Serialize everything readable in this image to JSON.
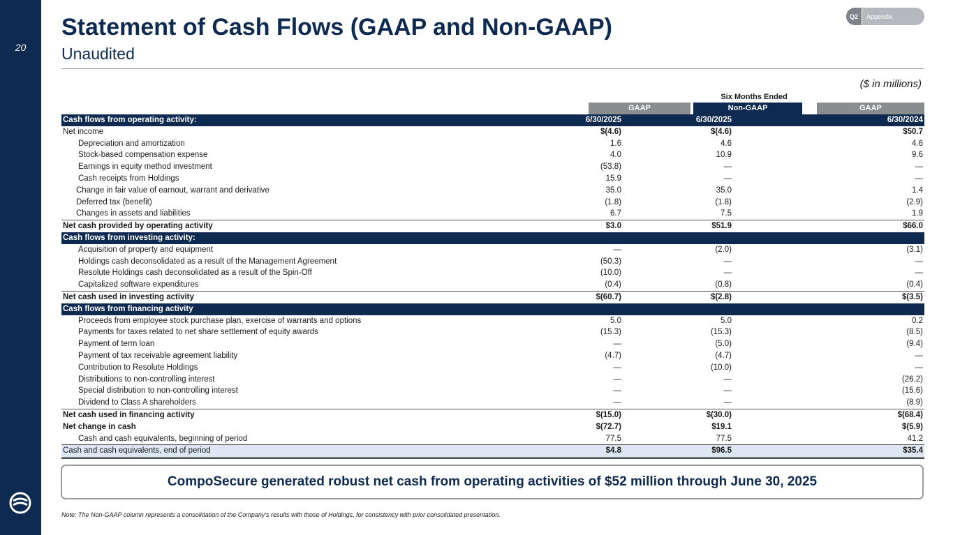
{
  "page_number": "20",
  "title": "Statement of Cash Flows (GAAP and Non-GAAP)",
  "subtitle": "Unaudited",
  "pill": {
    "quarter": "Q2",
    "section": "Appendix"
  },
  "units": "($ in millions)",
  "period_header": "Six Months Ended",
  "columns": [
    {
      "type": "GAAP",
      "date": "6/30/2025"
    },
    {
      "type": "Non-GAAP",
      "date": "6/30/2025"
    },
    {
      "type": "GAAP",
      "date": "6/30/2024"
    }
  ],
  "rows": [
    {
      "label": "Cash flows from operating activity:",
      "style": "section",
      "values": [
        "6/30/2025",
        "6/30/2025",
        "6/30/2024"
      ]
    },
    {
      "label": "Net income",
      "style": "plain",
      "values": [
        "$(4.6)",
        "$(4.6)",
        "$50.7"
      ],
      "bold_values": true
    },
    {
      "label": "Depreciation and amortization",
      "style": "ind",
      "values": [
        "1.6",
        "4.6",
        "4.6"
      ]
    },
    {
      "label": "Stock-based compensation expense",
      "style": "ind",
      "values": [
        "4.0",
        "10.9",
        "9.6"
      ]
    },
    {
      "label": "Earnings in equity method investment",
      "style": "ind",
      "values": [
        "(53.8)",
        "—",
        "—"
      ]
    },
    {
      "label": "Cash receipts from Holdings",
      "style": "ind",
      "values": [
        "15.9",
        "—",
        "—"
      ]
    },
    {
      "label": "Change in fair value of earnout, warrant and derivative",
      "style": "ind2",
      "values": [
        "35.0",
        "35.0",
        "1.4"
      ]
    },
    {
      "label": "Deferred tax (benefit)",
      "style": "ind2",
      "values": [
        "(1.8)",
        "(1.8)",
        "(2.9)"
      ]
    },
    {
      "label": "Changes in assets and liabilities",
      "style": "ind2",
      "values": [
        "6.7",
        "7.5",
        "1.9"
      ]
    },
    {
      "label": "Net cash provided by operating activity",
      "style": "total",
      "values": [
        "$3.0",
        "$51.9",
        "$66.0"
      ]
    },
    {
      "label": "Cash flows from investing activity:",
      "style": "section",
      "values": [
        "",
        "",
        ""
      ]
    },
    {
      "label": "Acquisition of property and equipment",
      "style": "ind",
      "values": [
        "—",
        "(2.0)",
        "(3.1)"
      ]
    },
    {
      "label": "Holdings cash deconsolidated as a result of the Management Agreement",
      "style": "ind",
      "values": [
        "(50.3)",
        "—",
        "—"
      ]
    },
    {
      "label": "Resolute Holdings cash deconsolidated as a result of the Spin-Off",
      "style": "ind",
      "values": [
        "(10.0)",
        "—",
        "—"
      ]
    },
    {
      "label": "Capitalized software expenditures",
      "style": "ind",
      "values": [
        "(0.4)",
        "(0.8)",
        "(0.4)"
      ]
    },
    {
      "label": "Net cash used in investing activity",
      "style": "total",
      "values": [
        "$(60.7)",
        "$(2.8)",
        "$(3.5)"
      ]
    },
    {
      "label": "Cash flows from financing activity",
      "style": "section",
      "values": [
        "",
        "",
        ""
      ]
    },
    {
      "label": "Proceeds from employee stock purchase plan, exercise of warrants and options",
      "style": "ind",
      "values": [
        "5.0",
        "5.0",
        "0.2"
      ]
    },
    {
      "label": "Payments for taxes related to net share settlement of equity awards",
      "style": "ind",
      "values": [
        "(15.3)",
        "(15.3)",
        "(8.5)"
      ]
    },
    {
      "label": "Payment of term loan",
      "style": "ind",
      "values": [
        "—",
        "(5.0)",
        "(9.4)"
      ]
    },
    {
      "label": "Payment of tax receivable agreement liability",
      "style": "ind",
      "values": [
        "(4.7)",
        "(4.7)",
        "—"
      ]
    },
    {
      "label": "Contribution to Resolute Holdings",
      "style": "ind",
      "values": [
        "—",
        "(10.0)",
        "—"
      ]
    },
    {
      "label": "Distributions to non-controlling interest",
      "style": "ind",
      "values": [
        "—",
        "—",
        "(26.2)"
      ]
    },
    {
      "label": "Special distribution to non-controlling interest",
      "style": "ind",
      "values": [
        "—",
        "—",
        "(15.6)"
      ]
    },
    {
      "label": "Dividend to Class A shareholders",
      "style": "ind",
      "values": [
        "—",
        "—",
        "(8.9)"
      ]
    },
    {
      "label": "Net cash used in financing activity",
      "style": "total",
      "values": [
        "$(15.0)",
        "$(30.0)",
        "$(68.4)"
      ]
    },
    {
      "label": "Net change in cash",
      "style": "bold",
      "values": [
        "$(72.7)",
        "$19.1",
        "$(5.9)"
      ]
    },
    {
      "label": "Cash and cash equivalents, beginning of period",
      "style": "ind",
      "values": [
        "77.5",
        "77.5",
        "41.2"
      ]
    },
    {
      "label": "Cash and cash equivalents, end of period",
      "style": "end",
      "values": [
        "$4.8",
        "$96.5",
        "$35.4"
      ]
    }
  ],
  "callout": "CompoSecure generated robust net cash from operating activities of $52 million through June 30, 2025",
  "note": "Note: The Non-GAAP column represents a consolidation of the Company's results with those of Holdings, for consistency with prior consolidated presentation."
}
